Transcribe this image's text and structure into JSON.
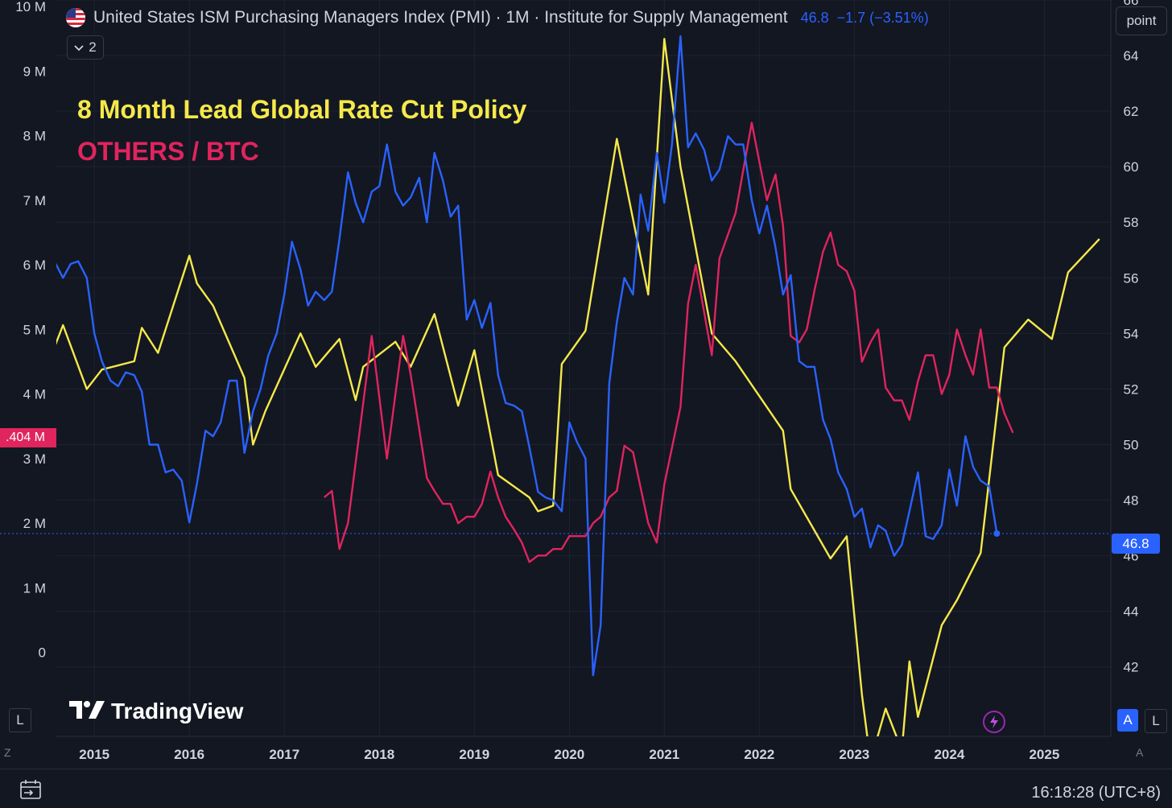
{
  "header": {
    "title": "United States ISM Purchasing Managers Index (PMI) · 1M · Institute for Supply Management",
    "value": "46.8",
    "change": "−1.7 (−3.51%)",
    "collapse_count": "2"
  },
  "toolbar": {
    "point_label": "point",
    "auto_label": "A",
    "log_label": "L",
    "left_log_label": "L"
  },
  "annotations": {
    "line1": "8 Month Lead Global Rate Cut Policy",
    "line2": "OTHERS / BTC"
  },
  "logo": {
    "text": "TradingView"
  },
  "footer": {
    "time": "16:18:28 (UTC+8)",
    "z_label": "Z",
    "a_label": "A"
  },
  "badges": {
    "left_value": ".404 M",
    "right_value": "46.8"
  },
  "colors": {
    "background": "#131722",
    "pmi": "#2962ff",
    "policy": "#f5e94a",
    "others_btc": "#e0245e",
    "grid": "#1f2330"
  },
  "chart_data": {
    "type": "line",
    "x_axis": {
      "ticks": [
        "2015",
        "2016",
        "2017",
        "2018",
        "2019",
        "2020",
        "2021",
        "2022",
        "2023",
        "2024",
        "2025"
      ],
      "range": [
        2014.6,
        2025.7
      ]
    },
    "left_axis": {
      "ticks": [
        "0",
        "1 M",
        "2 M",
        "3 M",
        "4 M",
        "5 M",
        "6 M",
        "7 M",
        "8 M",
        "9 M",
        "10 M"
      ],
      "range": [
        -1.3,
        10.1
      ],
      "unit": "M"
    },
    "right_axis": {
      "ticks": [
        42,
        44,
        46,
        48,
        50,
        52,
        54,
        56,
        58,
        60,
        62,
        64,
        66
      ],
      "range": [
        39.5,
        66.0
      ]
    },
    "current_line_value": 46.8,
    "series": [
      {
        "name": "United States ISM Purchasing Managers Index (PMI)",
        "axis": "right",
        "color": "#2962ff",
        "points": [
          [
            2014.58,
            56.6
          ],
          [
            2014.67,
            56.0
          ],
          [
            2014.75,
            56.5
          ],
          [
            2014.83,
            56.6
          ],
          [
            2014.92,
            56.0
          ],
          [
            2015.0,
            54.0
          ],
          [
            2015.08,
            53.0
          ],
          [
            2015.17,
            52.3
          ],
          [
            2015.25,
            52.1
          ],
          [
            2015.33,
            52.6
          ],
          [
            2015.42,
            52.5
          ],
          [
            2015.5,
            51.9
          ],
          [
            2015.58,
            50.0
          ],
          [
            2015.67,
            50.0
          ],
          [
            2015.75,
            49.0
          ],
          [
            2015.83,
            49.1
          ],
          [
            2015.92,
            48.7
          ],
          [
            2016.0,
            47.2
          ],
          [
            2016.08,
            48.6
          ],
          [
            2016.17,
            50.5
          ],
          [
            2016.25,
            50.3
          ],
          [
            2016.33,
            50.8
          ],
          [
            2016.42,
            52.3
          ],
          [
            2016.5,
            52.3
          ],
          [
            2016.58,
            49.7
          ],
          [
            2016.67,
            51.2
          ],
          [
            2016.75,
            52.0
          ],
          [
            2016.83,
            53.2
          ],
          [
            2016.92,
            54.0
          ],
          [
            2017.0,
            55.4
          ],
          [
            2017.08,
            57.3
          ],
          [
            2017.17,
            56.3
          ],
          [
            2017.25,
            55.0
          ],
          [
            2017.33,
            55.5
          ],
          [
            2017.42,
            55.2
          ],
          [
            2017.5,
            55.5
          ],
          [
            2017.58,
            57.4
          ],
          [
            2017.67,
            59.8
          ],
          [
            2017.75,
            58.7
          ],
          [
            2017.83,
            58.0
          ],
          [
            2017.92,
            59.1
          ],
          [
            2018.0,
            59.3
          ],
          [
            2018.08,
            60.8
          ],
          [
            2018.17,
            59.1
          ],
          [
            2018.25,
            58.6
          ],
          [
            2018.33,
            58.9
          ],
          [
            2018.42,
            59.6
          ],
          [
            2018.5,
            58.0
          ],
          [
            2018.58,
            60.5
          ],
          [
            2018.67,
            59.5
          ],
          [
            2018.75,
            58.2
          ],
          [
            2018.83,
            58.6
          ],
          [
            2018.92,
            54.5
          ],
          [
            2019.0,
            55.2
          ],
          [
            2019.08,
            54.2
          ],
          [
            2019.17,
            55.1
          ],
          [
            2019.25,
            52.5
          ],
          [
            2019.33,
            51.5
          ],
          [
            2019.42,
            51.4
          ],
          [
            2019.5,
            51.2
          ],
          [
            2019.58,
            49.9
          ],
          [
            2019.67,
            48.3
          ],
          [
            2019.75,
            48.1
          ],
          [
            2019.83,
            48.0
          ],
          [
            2019.92,
            47.6
          ],
          [
            2020.0,
            50.8
          ],
          [
            2020.08,
            50.1
          ],
          [
            2020.17,
            49.5
          ],
          [
            2020.25,
            41.7
          ],
          [
            2020.33,
            43.5
          ],
          [
            2020.42,
            52.2
          ],
          [
            2020.5,
            54.4
          ],
          [
            2020.58,
            56.0
          ],
          [
            2020.67,
            55.4
          ],
          [
            2020.75,
            59.0
          ],
          [
            2020.83,
            57.7
          ],
          [
            2020.92,
            60.5
          ],
          [
            2021.0,
            58.7
          ],
          [
            2021.08,
            60.8
          ],
          [
            2021.17,
            64.7
          ],
          [
            2021.25,
            60.7
          ],
          [
            2021.33,
            61.2
          ],
          [
            2021.42,
            60.6
          ],
          [
            2021.5,
            59.5
          ],
          [
            2021.58,
            59.9
          ],
          [
            2021.67,
            61.1
          ],
          [
            2021.75,
            60.8
          ],
          [
            2021.83,
            60.8
          ],
          [
            2021.92,
            58.8
          ],
          [
            2022.0,
            57.6
          ],
          [
            2022.08,
            58.6
          ],
          [
            2022.17,
            57.1
          ],
          [
            2022.25,
            55.4
          ],
          [
            2022.33,
            56.1
          ],
          [
            2022.42,
            53.0
          ],
          [
            2022.5,
            52.8
          ],
          [
            2022.58,
            52.8
          ],
          [
            2022.67,
            50.9
          ],
          [
            2022.75,
            50.2
          ],
          [
            2022.83,
            49.0
          ],
          [
            2022.92,
            48.4
          ],
          [
            2023.0,
            47.4
          ],
          [
            2023.08,
            47.7
          ],
          [
            2023.17,
            46.3
          ],
          [
            2023.25,
            47.1
          ],
          [
            2023.33,
            46.9
          ],
          [
            2023.42,
            46.0
          ],
          [
            2023.5,
            46.4
          ],
          [
            2023.58,
            47.6
          ],
          [
            2023.67,
            49.0
          ],
          [
            2023.75,
            46.7
          ],
          [
            2023.83,
            46.6
          ],
          [
            2023.92,
            47.1
          ],
          [
            2024.0,
            49.1
          ],
          [
            2024.08,
            47.8
          ],
          [
            2024.17,
            50.3
          ],
          [
            2024.25,
            49.2
          ],
          [
            2024.33,
            48.7
          ],
          [
            2024.42,
            48.5
          ],
          [
            2024.5,
            46.8
          ]
        ]
      },
      {
        "name": "8 Month Lead Global Rate Cut Policy",
        "axis": "right",
        "color": "#f5e94a",
        "points": [
          [
            2014.58,
            53.5
          ],
          [
            2014.67,
            54.3
          ],
          [
            2014.92,
            52.0
          ],
          [
            2015.08,
            52.7
          ],
          [
            2015.42,
            53.0
          ],
          [
            2015.5,
            54.2
          ],
          [
            2015.67,
            53.3
          ],
          [
            2016.0,
            56.8
          ],
          [
            2016.08,
            55.8
          ],
          [
            2016.25,
            55.0
          ],
          [
            2016.58,
            52.4
          ],
          [
            2016.67,
            50.0
          ],
          [
            2016.8,
            51.2
          ],
          [
            2017.17,
            54.0
          ],
          [
            2017.33,
            52.8
          ],
          [
            2017.58,
            53.8
          ],
          [
            2017.75,
            51.6
          ],
          [
            2017.83,
            52.8
          ],
          [
            2018.17,
            53.7
          ],
          [
            2018.33,
            52.8
          ],
          [
            2018.58,
            54.7
          ],
          [
            2018.83,
            51.4
          ],
          [
            2019.0,
            53.4
          ],
          [
            2019.25,
            48.9
          ],
          [
            2019.58,
            48.1
          ],
          [
            2019.67,
            47.6
          ],
          [
            2019.83,
            47.8
          ],
          [
            2019.92,
            52.9
          ],
          [
            2020.17,
            54.1
          ],
          [
            2020.5,
            61.0
          ],
          [
            2020.83,
            55.4
          ],
          [
            2021.0,
            64.6
          ],
          [
            2021.17,
            60.0
          ],
          [
            2021.5,
            54.0
          ],
          [
            2021.75,
            53.0
          ],
          [
            2022.25,
            50.5
          ],
          [
            2022.33,
            48.4
          ],
          [
            2022.75,
            45.9
          ],
          [
            2022.92,
            46.7
          ],
          [
            2023.08,
            41.0
          ],
          [
            2023.17,
            38.6
          ],
          [
            2023.33,
            40.5
          ],
          [
            2023.5,
            39.0
          ],
          [
            2023.58,
            42.2
          ],
          [
            2023.67,
            40.2
          ],
          [
            2023.92,
            43.5
          ],
          [
            2024.08,
            44.4
          ],
          [
            2024.33,
            46.1
          ],
          [
            2024.58,
            53.5
          ],
          [
            2024.83,
            54.5
          ],
          [
            2025.08,
            53.8
          ],
          [
            2025.25,
            56.2
          ],
          [
            2025.58,
            57.4
          ]
        ]
      },
      {
        "name": "OTHERS / BTC",
        "axis": "left",
        "color": "#e0245e",
        "points": [
          [
            2017.42,
            2.4
          ],
          [
            2017.5,
            2.5
          ],
          [
            2017.58,
            1.6
          ],
          [
            2017.67,
            2.0
          ],
          [
            2017.92,
            4.9
          ],
          [
            2018.08,
            3.0
          ],
          [
            2018.25,
            4.9
          ],
          [
            2018.33,
            4.3
          ],
          [
            2018.5,
            2.7
          ],
          [
            2018.58,
            2.5
          ],
          [
            2018.67,
            2.3
          ],
          [
            2018.75,
            2.3
          ],
          [
            2018.83,
            2.0
          ],
          [
            2018.92,
            2.1
          ],
          [
            2019.0,
            2.1
          ],
          [
            2019.08,
            2.3
          ],
          [
            2019.17,
            2.8
          ],
          [
            2019.25,
            2.4
          ],
          [
            2019.33,
            2.1
          ],
          [
            2019.42,
            1.9
          ],
          [
            2019.5,
            1.7
          ],
          [
            2019.58,
            1.4
          ],
          [
            2019.67,
            1.5
          ],
          [
            2019.75,
            1.5
          ],
          [
            2019.83,
            1.6
          ],
          [
            2019.92,
            1.6
          ],
          [
            2020.0,
            1.8
          ],
          [
            2020.08,
            1.8
          ],
          [
            2020.17,
            1.8
          ],
          [
            2020.25,
            2.0
          ],
          [
            2020.33,
            2.1
          ],
          [
            2020.42,
            2.4
          ],
          [
            2020.5,
            2.5
          ],
          [
            2020.58,
            3.2
          ],
          [
            2020.67,
            3.1
          ],
          [
            2020.83,
            2.0
          ],
          [
            2020.92,
            1.7
          ],
          [
            2021.0,
            2.6
          ],
          [
            2021.17,
            3.8
          ],
          [
            2021.25,
            5.4
          ],
          [
            2021.33,
            6.0
          ],
          [
            2021.5,
            4.6
          ],
          [
            2021.58,
            6.1
          ],
          [
            2021.75,
            6.8
          ],
          [
            2021.92,
            8.2
          ],
          [
            2022.0,
            7.6
          ],
          [
            2022.08,
            7.0
          ],
          [
            2022.17,
            7.4
          ],
          [
            2022.25,
            6.6
          ],
          [
            2022.33,
            4.9
          ],
          [
            2022.42,
            4.8
          ],
          [
            2022.5,
            5.0
          ],
          [
            2022.58,
            5.6
          ],
          [
            2022.67,
            6.2
          ],
          [
            2022.75,
            6.5
          ],
          [
            2022.83,
            6.0
          ],
          [
            2022.92,
            5.9
          ],
          [
            2023.0,
            5.6
          ],
          [
            2023.08,
            4.5
          ],
          [
            2023.17,
            4.8
          ],
          [
            2023.25,
            5.0
          ],
          [
            2023.33,
            4.1
          ],
          [
            2023.42,
            3.9
          ],
          [
            2023.5,
            3.9
          ],
          [
            2023.58,
            3.6
          ],
          [
            2023.67,
            4.2
          ],
          [
            2023.75,
            4.6
          ],
          [
            2023.83,
            4.6
          ],
          [
            2023.92,
            4.0
          ],
          [
            2024.0,
            4.3
          ],
          [
            2024.08,
            5.0
          ],
          [
            2024.17,
            4.6
          ],
          [
            2024.25,
            4.3
          ],
          [
            2024.33,
            5.0
          ],
          [
            2024.42,
            4.1
          ],
          [
            2024.5,
            4.1
          ],
          [
            2024.58,
            3.7
          ],
          [
            2024.67,
            3.4
          ]
        ]
      }
    ]
  }
}
